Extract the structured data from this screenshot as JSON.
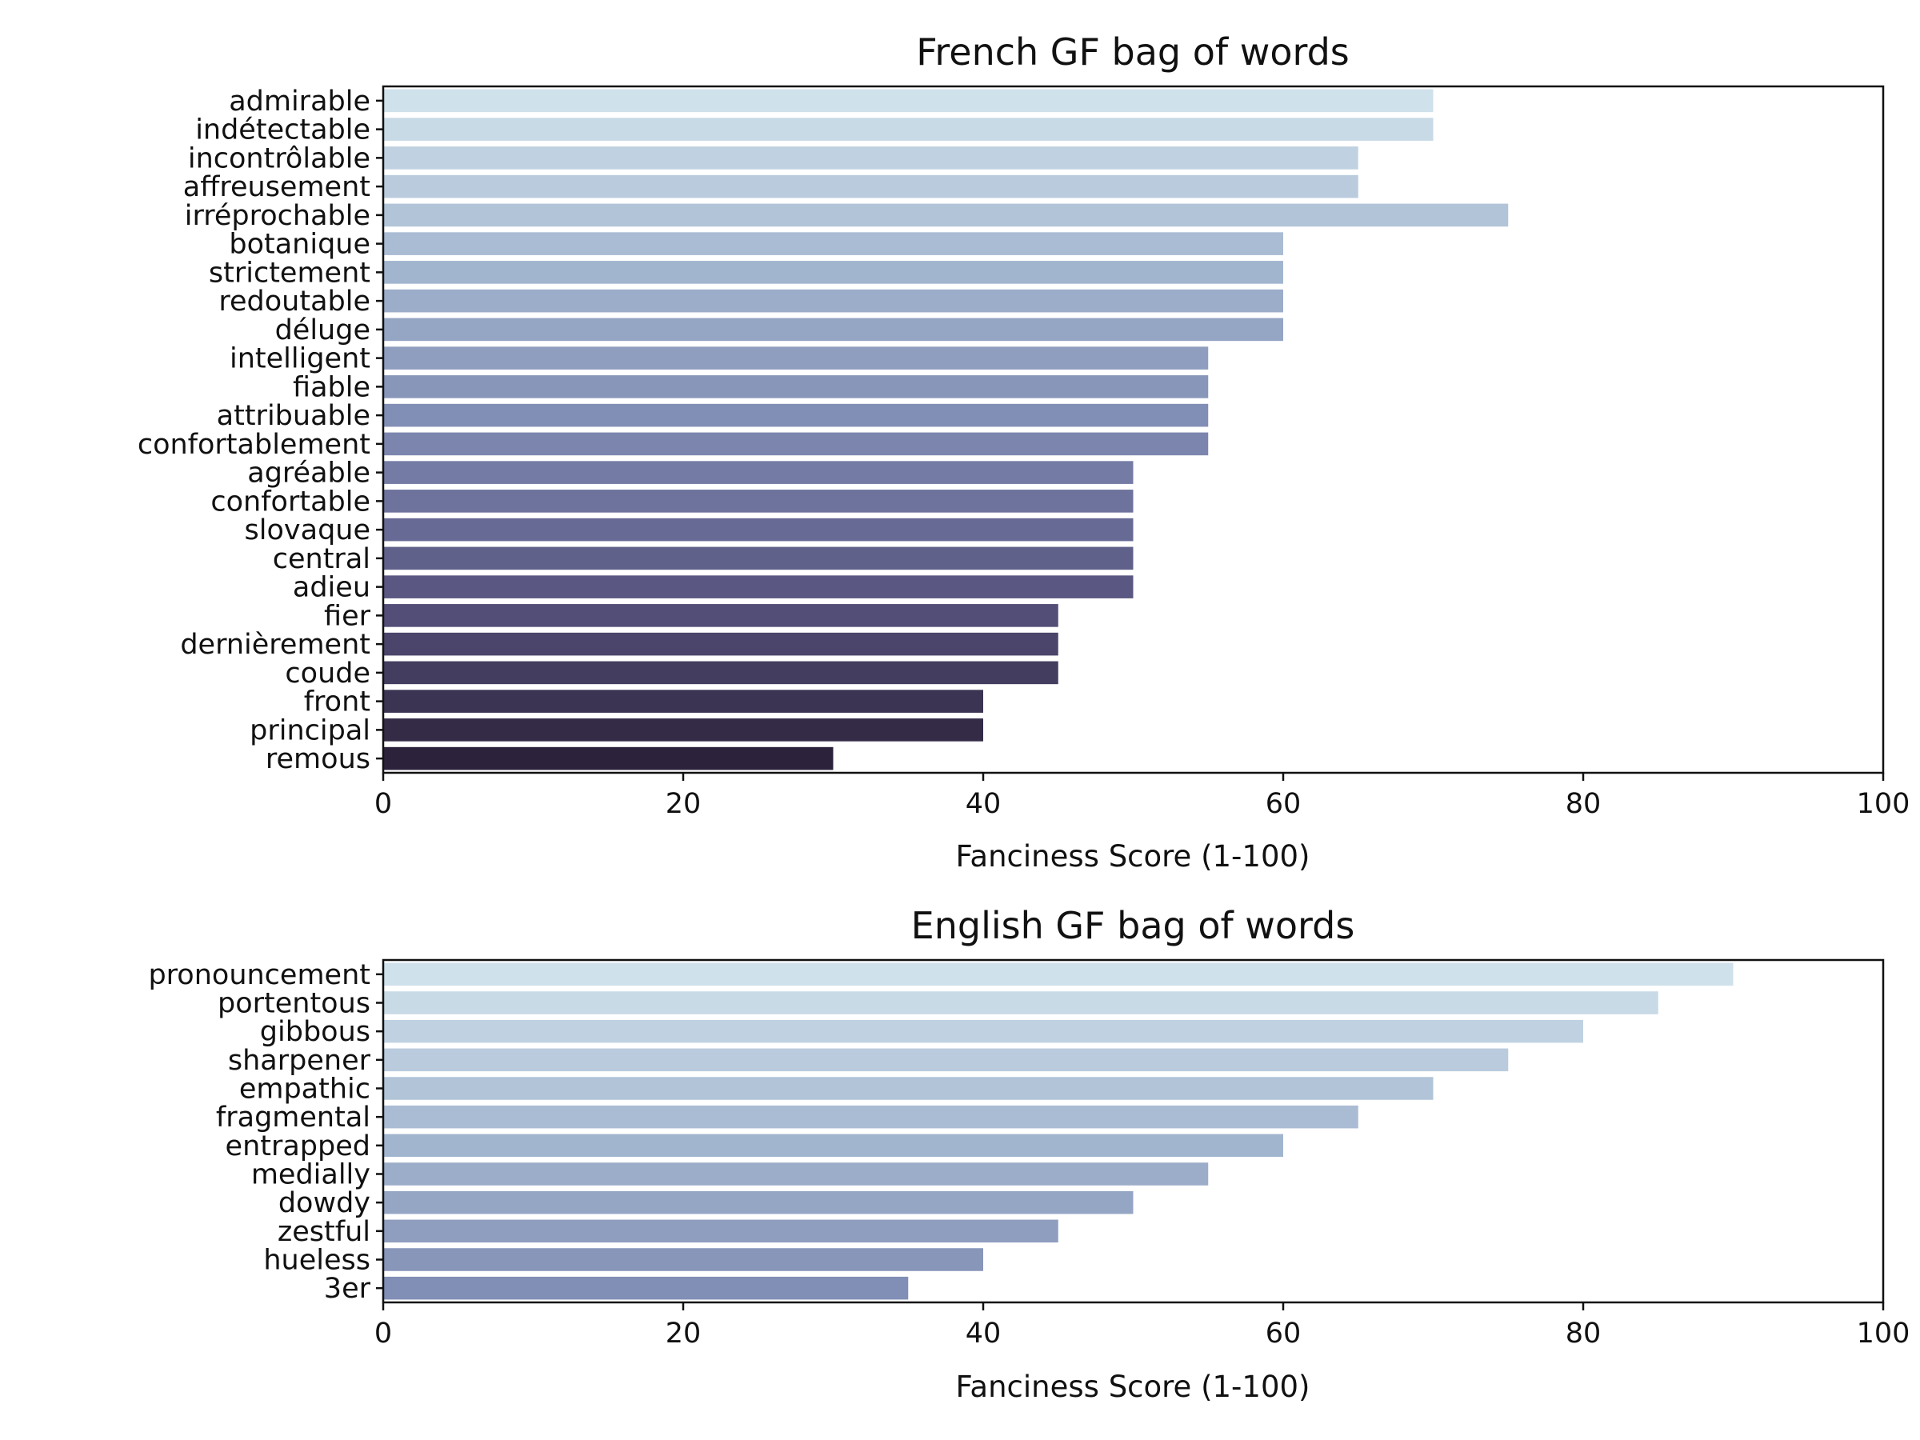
{
  "chart_data": [
    {
      "type": "bar",
      "orientation": "horizontal",
      "title": "French GF bag of words",
      "xlabel": "Fanciness Score (1-100)",
      "ylabel": "",
      "xlim": [
        0,
        100
      ],
      "xticks": [
        "0",
        "20",
        "40",
        "60",
        "80",
        "100"
      ],
      "grid": false,
      "colormap": "light steel blue to dark navy",
      "categories": [
        "admirable",
        "indétectable",
        "incontrôlable",
        "affreusement",
        "irréprochable",
        "botanique",
        "strictement",
        "redoutable",
        "déluge",
        "intelligent",
        "fiable",
        "attribuable",
        "confortablement",
        "agréable",
        "confortable",
        "slovaque",
        "central",
        "adieu",
        "fier",
        "dernièrement",
        "coude",
        "front",
        "principal",
        "remous"
      ],
      "values": [
        70,
        70,
        65,
        65,
        75,
        60,
        60,
        60,
        60,
        55,
        55,
        55,
        55,
        50,
        50,
        50,
        50,
        50,
        45,
        45,
        45,
        40,
        40,
        30
      ]
    },
    {
      "type": "bar",
      "orientation": "horizontal",
      "title": "English GF bag of words",
      "xlabel": "Fanciness Score (1-100)",
      "ylabel": "",
      "xlim": [
        0,
        100
      ],
      "xticks": [
        "0",
        "20",
        "40",
        "60",
        "80",
        "100"
      ],
      "grid": false,
      "colormap": "light steel blue to dark navy",
      "categories": [
        "pronouncement",
        "portentous",
        "gibbous",
        "sharpener",
        "empathic",
        "fragmental",
        "entrapped",
        "medially",
        "dowdy",
        "zestful",
        "hueless",
        "3er"
      ],
      "values": [
        90,
        85,
        80,
        75,
        70,
        65,
        60,
        55,
        50,
        45,
        40,
        35
      ]
    }
  ]
}
